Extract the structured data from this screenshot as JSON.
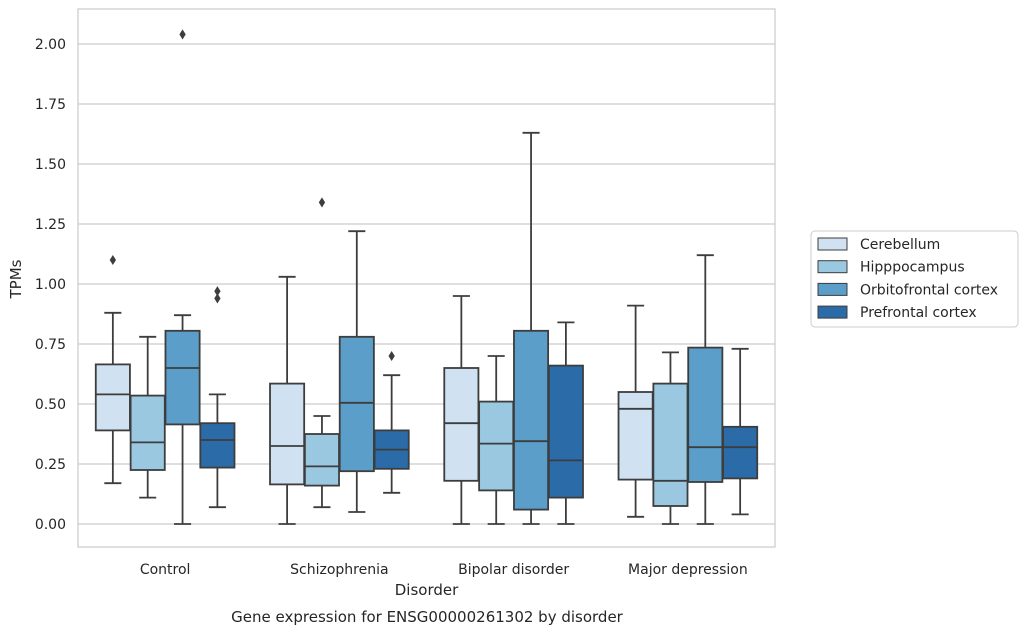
{
  "chart_data": {
    "type": "box",
    "title": "",
    "caption": "Gene expression for ENSG00000261302 by disorder",
    "xlabel": "Disorder",
    "ylabel": "TPMs",
    "ylim": [
      -0.1,
      2.15
    ],
    "yticks": [
      0.0,
      0.25,
      0.5,
      0.75,
      1.0,
      1.25,
      1.5,
      1.75,
      2.0
    ],
    "ytick_labels": [
      "0.00",
      "0.25",
      "0.50",
      "0.75",
      "1.00",
      "1.25",
      "1.50",
      "1.75",
      "2.00"
    ],
    "grid": true,
    "legend_position": "right, outside plot",
    "categories": [
      "Control",
      "Schizophrenia",
      "Bipolar disorder",
      "Major depression"
    ],
    "series": [
      {
        "name": "Cerebellum",
        "color": "#d0e1f2",
        "boxes": [
          {
            "whislo": 0.17,
            "q1": 0.39,
            "med": 0.54,
            "q3": 0.665,
            "whishi": 0.88,
            "fliers": [
              1.1
            ]
          },
          {
            "whislo": 0.0,
            "q1": 0.165,
            "med": 0.325,
            "q3": 0.585,
            "whishi": 1.03,
            "fliers": []
          },
          {
            "whislo": 0.0,
            "q1": 0.18,
            "med": 0.42,
            "q3": 0.65,
            "whishi": 0.95,
            "fliers": []
          },
          {
            "whislo": 0.03,
            "q1": 0.185,
            "med": 0.48,
            "q3": 0.55,
            "whishi": 0.91,
            "fliers": []
          }
        ]
      },
      {
        "name": "Hipppocampus",
        "color": "#9ac8e0",
        "boxes": [
          {
            "whislo": 0.11,
            "q1": 0.225,
            "med": 0.34,
            "q3": 0.535,
            "whishi": 0.78,
            "fliers": []
          },
          {
            "whislo": 0.07,
            "q1": 0.16,
            "med": 0.24,
            "q3": 0.375,
            "whishi": 0.45,
            "fliers": [
              1.34
            ]
          },
          {
            "whislo": 0.0,
            "q1": 0.14,
            "med": 0.335,
            "q3": 0.51,
            "whishi": 0.7,
            "fliers": []
          },
          {
            "whislo": 0.0,
            "q1": 0.075,
            "med": 0.18,
            "q3": 0.585,
            "whishi": 0.715,
            "fliers": []
          }
        ]
      },
      {
        "name": "Orbitofrontal cortex",
        "color": "#5a9ec9",
        "boxes": [
          {
            "whislo": 0.0,
            "q1": 0.415,
            "med": 0.65,
            "q3": 0.805,
            "whishi": 0.87,
            "fliers": [
              2.04
            ]
          },
          {
            "whislo": 0.05,
            "q1": 0.22,
            "med": 0.505,
            "q3": 0.78,
            "whishi": 1.22,
            "fliers": []
          },
          {
            "whislo": 0.0,
            "q1": 0.06,
            "med": 0.345,
            "q3": 0.805,
            "whishi": 1.63,
            "fliers": []
          },
          {
            "whislo": 0.0,
            "q1": 0.175,
            "med": 0.32,
            "q3": 0.735,
            "whishi": 1.12,
            "fliers": []
          }
        ]
      },
      {
        "name": "Prefrontal cortex",
        "color": "#2b6ca8",
        "boxes": [
          {
            "whislo": 0.07,
            "q1": 0.235,
            "med": 0.35,
            "q3": 0.42,
            "whishi": 0.54,
            "fliers": [
              0.94,
              0.97
            ]
          },
          {
            "whislo": 0.13,
            "q1": 0.23,
            "med": 0.31,
            "q3": 0.39,
            "whishi": 0.62,
            "fliers": [
              0.7
            ]
          },
          {
            "whislo": 0.0,
            "q1": 0.11,
            "med": 0.265,
            "q3": 0.66,
            "whishi": 0.84,
            "fliers": []
          },
          {
            "whislo": 0.04,
            "q1": 0.19,
            "med": 0.32,
            "q3": 0.405,
            "whishi": 0.73,
            "fliers": []
          }
        ]
      }
    ]
  }
}
